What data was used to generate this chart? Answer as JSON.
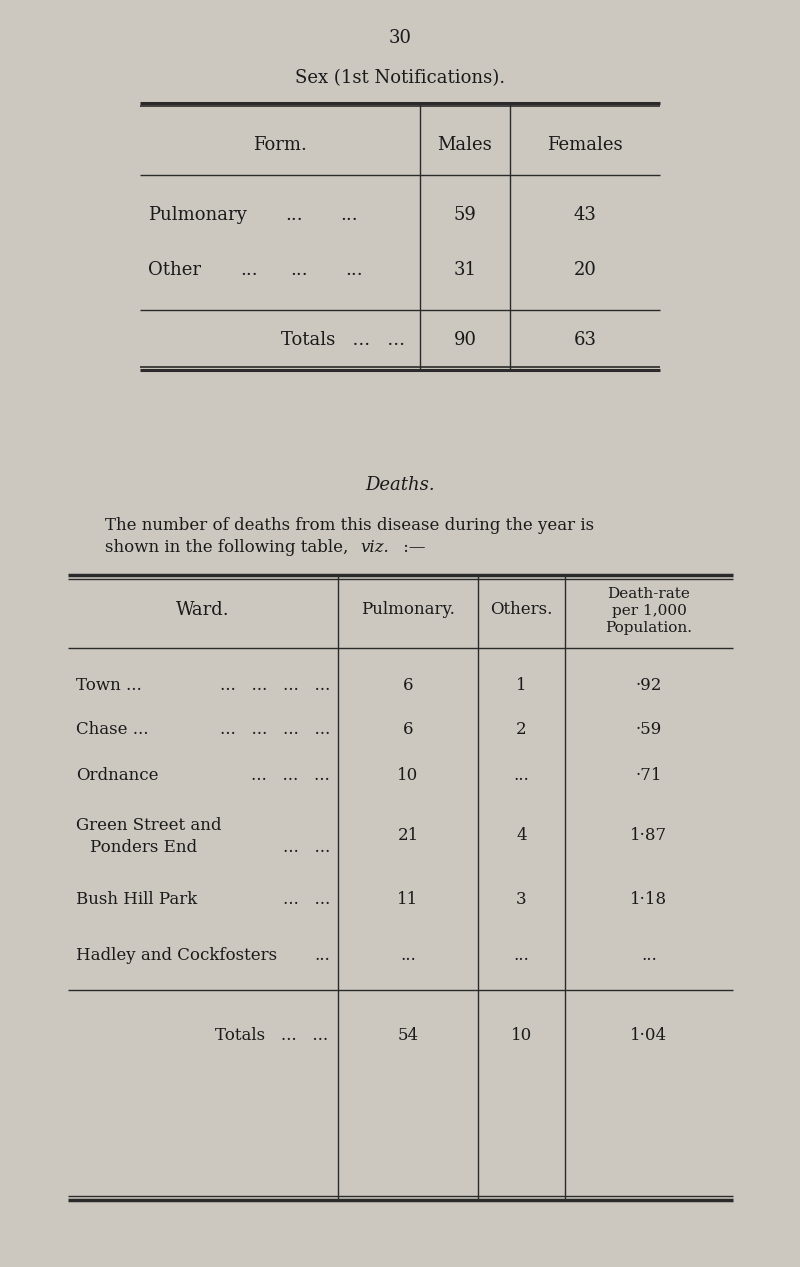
{
  "page_number": "30",
  "bg_color": "#ccc8c0",
  "text_color": "#1a1a1a",
  "table1_title": "Sex (1st Notifications).",
  "table1_col1": [
    "59",
    "31",
    "90"
  ],
  "table1_col2": [
    "43",
    "20",
    "63"
  ],
  "deaths_title": "Deaths.",
  "deaths_para_line1": "The number of deaths from this disease during the year is",
  "deaths_para_line2": "shown in the following table, viz. :—",
  "table2_pulmonary": [
    "6",
    "6",
    "10",
    "21",
    "11",
    "..."
  ],
  "table2_others": [
    "1",
    "2",
    "...",
    "4",
    "3",
    "..."
  ],
  "table2_deathrate": [
    "·92",
    "·59",
    "·71",
    "1·87",
    "1·18",
    "..."
  ],
  "table2_totals_pulmonary": "54",
  "table2_totals_others": "10",
  "table2_totals_deathrate": "1·04"
}
